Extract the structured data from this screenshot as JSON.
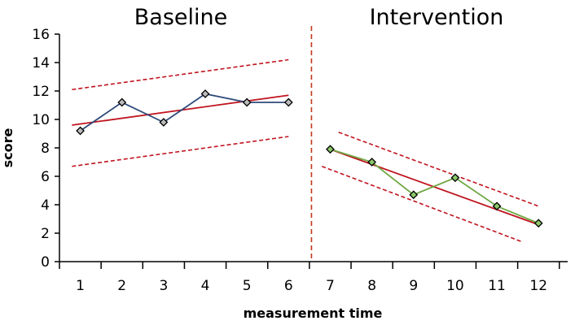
{
  "chart_data": {
    "type": "line",
    "xlabel": "measurement time",
    "ylabel": "score",
    "xlim": [
      0.5,
      12.7
    ],
    "ylim": [
      0,
      16
    ],
    "x_ticks": [
      1,
      2,
      3,
      4,
      5,
      6,
      7,
      8,
      9,
      10,
      11,
      12
    ],
    "y_ticks": [
      0,
      2,
      4,
      6,
      8,
      10,
      12,
      14,
      16
    ],
    "grid": false,
    "phase_change_x": 6.55,
    "phases": [
      {
        "name": "Baseline",
        "x": [
          1,
          2,
          3,
          4,
          5,
          6
        ],
        "y": [
          9.2,
          11.2,
          9.8,
          11.8,
          11.2,
          11.2
        ],
        "line_color": "#2e4a7a",
        "marker_color": "#bcbcbc",
        "trend": {
          "from": [
            0.8,
            9.6
          ],
          "to": [
            6.0,
            11.7
          ]
        },
        "upper_band": {
          "from": [
            0.8,
            12.1
          ],
          "to": [
            6.0,
            14.2
          ]
        },
        "lower_band": {
          "from": [
            0.8,
            6.7
          ],
          "to": [
            6.0,
            8.8
          ]
        }
      },
      {
        "name": "Intervention",
        "x": [
          7,
          8,
          9,
          10,
          11,
          12
        ],
        "y": [
          7.9,
          7.0,
          4.7,
          5.9,
          3.9,
          2.7
        ],
        "line_color": "#6fa843",
        "marker_color": "#8cc76a",
        "trend": {
          "from": [
            7.0,
            7.9
          ],
          "to": [
            12.0,
            2.6
          ]
        },
        "upper_band": {
          "from": [
            7.2,
            9.1
          ],
          "to": [
            12.0,
            3.9
          ]
        },
        "lower_band": {
          "from": [
            6.8,
            6.7
          ],
          "to": [
            11.6,
            1.4
          ]
        }
      }
    ],
    "colors": {
      "trend": "#c0141e",
      "phase_line": "#c0391b",
      "axis": "#000000"
    }
  }
}
